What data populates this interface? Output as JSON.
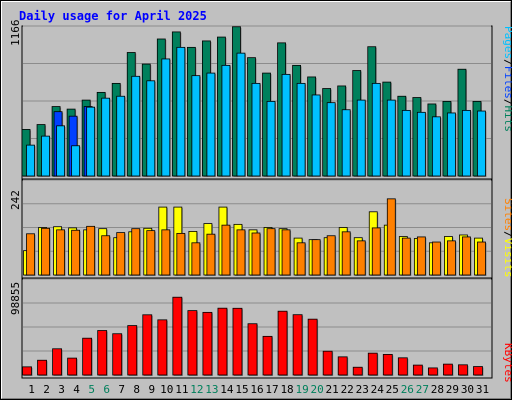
{
  "chart_data": [
    {
      "type": "bar",
      "title": "Daily usage for April 2025",
      "categories": [
        "1",
        "2",
        "3",
        "4",
        "5",
        "6",
        "7",
        "8",
        "9",
        "10",
        "11",
        "12",
        "13",
        "14",
        "15",
        "16",
        "17",
        "18",
        "19",
        "20",
        "21",
        "22",
        "23",
        "24",
        "25",
        "26",
        "27",
        "28",
        "29",
        "30",
        "31"
      ],
      "weekend_days": [
        "5",
        "6",
        "12",
        "13",
        "19",
        "20",
        "26",
        "27"
      ],
      "y_tick_label": "1166",
      "ylim": [
        0,
        1166
      ],
      "series_labels": [
        "Pages",
        "Files",
        "Hits"
      ],
      "series_colors": [
        "#00c0ff",
        "#0040ff",
        "#00805c"
      ],
      "series": [
        {
          "name": "Hits",
          "color": "#00805c",
          "values": [
            362,
            400,
            540,
            520,
            590,
            650,
            720,
            960,
            870,
            1065,
            1120,
            1000,
            1050,
            1080,
            1160,
            920,
            800,
            1035,
            860,
            770,
            680,
            700,
            820,
            1005,
            730,
            620,
            610,
            560,
            580,
            830,
            580
          ]
        },
        {
          "name": "Files",
          "color": "#0040ff",
          "values": [
            0,
            0,
            500,
            465,
            540,
            0,
            0,
            0,
            0,
            0,
            0,
            0,
            0,
            0,
            0,
            0,
            0,
            0,
            0,
            0,
            0,
            0,
            0,
            0,
            0,
            0,
            0,
            0,
            0,
            0,
            0
          ]
        },
        {
          "name": "Pages",
          "color": "#00c0ff",
          "values": [
            240,
            310,
            390,
            235,
            535,
            605,
            620,
            775,
            740,
            910,
            1000,
            780,
            800,
            860,
            955,
            720,
            580,
            790,
            720,
            630,
            570,
            515,
            590,
            720,
            590,
            510,
            495,
            460,
            490,
            510,
            505
          ]
        }
      ]
    },
    {
      "type": "bar",
      "categories": [
        "1",
        "2",
        "3",
        "4",
        "5",
        "6",
        "7",
        "8",
        "9",
        "10",
        "11",
        "12",
        "13",
        "14",
        "15",
        "16",
        "17",
        "18",
        "19",
        "20",
        "21",
        "22",
        "23",
        "24",
        "25",
        "26",
        "27",
        "28",
        "29",
        "30",
        "31"
      ],
      "y_tick_label": "242",
      "ylim": [
        0,
        242
      ],
      "series_labels": [
        "Sites",
        "Visits"
      ],
      "series_colors": [
        "#ff8000",
        "#ffff00"
      ],
      "series": [
        {
          "name": "Visits",
          "color": "#ffff00",
          "values": [
            62,
            121,
            123,
            120,
            115,
            118,
            95,
            110,
            119,
            173,
            173,
            111,
            131,
            173,
            129,
            115,
            121,
            118,
            94,
            90,
            95,
            121,
            95,
            161,
            127,
            98,
            93,
            82,
            98,
            102,
            94
          ]
        },
        {
          "name": "Sites",
          "color": "#ff8000",
          "values": [
            105,
            119,
            115,
            114,
            124,
            100,
            108,
            118,
            113,
            115,
            106,
            82,
            104,
            127,
            115,
            107,
            118,
            115,
            82,
            90,
            100,
            110,
            87,
            120,
            194,
            94,
            97,
            84,
            87,
            97,
            84
          ]
        }
      ]
    },
    {
      "type": "bar",
      "categories": [
        "1",
        "2",
        "3",
        "4",
        "5",
        "6",
        "7",
        "8",
        "9",
        "10",
        "11",
        "12",
        "13",
        "14",
        "15",
        "16",
        "17",
        "18",
        "19",
        "20",
        "21",
        "22",
        "23",
        "24",
        "25",
        "26",
        "27",
        "28",
        "29",
        "30",
        "31"
      ],
      "y_tick_label": "98855",
      "ylim": [
        0,
        98855
      ],
      "series_labels": [
        "KBytes"
      ],
      "series_colors": [
        "#ff0000"
      ],
      "series": [
        {
          "name": "KBytes",
          "color": "#ff0000",
          "values": [
            8400,
            15200,
            27000,
            17400,
            37900,
            45800,
            42500,
            50900,
            62000,
            56800,
            80100,
            66300,
            64500,
            68800,
            68700,
            52800,
            39800,
            65700,
            62100,
            57500,
            24500,
            18700,
            8000,
            22500,
            21200,
            17700,
            10200,
            7300,
            11200,
            10500,
            8700
          ]
        }
      ]
    }
  ]
}
